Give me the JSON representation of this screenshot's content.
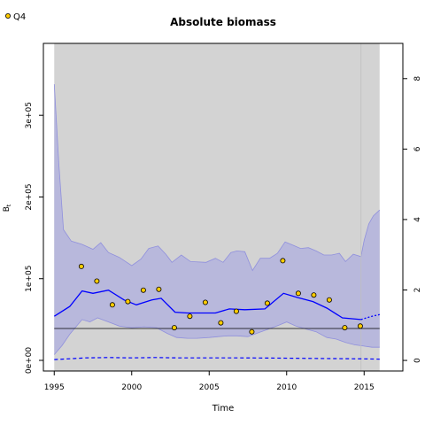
{
  "chart_data": {
    "type": "line",
    "title": "Absolute biomass",
    "xlabel": "Time",
    "ylabel": "B_t",
    "ylabel_main": "B",
    "ylabel_sub": "t",
    "xlim": [
      1994.3,
      2017.5
    ],
    "ylim": [
      -13000.0,
      388000.0
    ],
    "y2lim": [
      -0.3,
      9.0
    ],
    "xticks": [
      1995,
      2000,
      2005,
      2010,
      2015
    ],
    "yticks": [
      0,
      100000,
      200000,
      300000
    ],
    "ytick_labels": [
      "0e+00",
      "1e+05",
      "2e+05",
      "3e+05"
    ],
    "y2ticks": [
      0,
      2,
      4,
      6,
      8
    ],
    "y2tick_labels": [
      "0",
      "2",
      "4",
      "6",
      "8"
    ],
    "shaded_period": [
      1995,
      2016
    ],
    "vertical_line_x": 2014.8,
    "legend": {
      "position": "top-left",
      "entries": [
        {
          "label": "Q4",
          "marker": "circle",
          "color": "#ffcc00"
        }
      ]
    },
    "colors": {
      "bg_shade": "#d3d3d3",
      "ci_fill": "#b8b8dc",
      "ci_edge": "#9090dd",
      "line": "#0000ff",
      "ref_line": "#000000",
      "point": "#ffcc00",
      "vline": "#bfbfbf"
    },
    "series": [
      {
        "name": "Q4",
        "kind": "points",
        "x": [
          1996.75,
          1997.75,
          1998.75,
          1999.75,
          2000.75,
          2001.75,
          2002.75,
          2003.75,
          2004.75,
          2005.75,
          2006.75,
          2007.75,
          2008.75,
          2009.75,
          2010.75,
          2011.75,
          2012.75,
          2013.75,
          2014.75
        ],
        "values": [
          115000,
          97000,
          68000,
          72000,
          86000,
          87000,
          40000,
          54000,
          71000,
          46000,
          60000,
          35000,
          70000,
          122000,
          82000,
          80000,
          74000,
          40000,
          42000
        ]
      },
      {
        "name": "",
        "kind": "median",
        "x": [
          1995.0,
          1996.0,
          1996.8,
          1997.5,
          1998.5,
          1999.5,
          2000.3,
          2001.3,
          2001.9,
          2002.8,
          2003.6,
          2004.5,
          2005.4,
          2006.3,
          2007.3,
          2008.6,
          2009.8,
          2010.7,
          2011.7,
          2012.6,
          2013.6,
          2014.8
        ],
        "values": [
          54000,
          66000,
          85000,
          82000,
          86000,
          74000,
          68000,
          74000,
          76000,
          59000,
          58000,
          58000,
          58000,
          63000,
          62000,
          63000,
          82000,
          77000,
          72000,
          64000,
          52000,
          50000
        ]
      },
      {
        "name": "",
        "kind": "prediction",
        "x": [
          2014.8,
          2015.5,
          2016.0
        ],
        "values": [
          50000,
          54000,
          56000
        ]
      },
      {
        "name": "",
        "kind": "ci_upper",
        "x": [
          1995.0,
          1995.3,
          1995.6,
          1996.1,
          1996.8,
          1997.5,
          1998.0,
          1998.5,
          1999.2,
          2000.0,
          2000.6,
          2001.1,
          2001.7,
          2002.2,
          2002.6,
          2003.2,
          2003.8,
          2004.8,
          2005.4,
          2005.9,
          2006.4,
          2006.8,
          2007.3,
          2007.8,
          2008.3,
          2008.9,
          2009.4,
          2009.9,
          2010.4,
          2010.9,
          2011.4,
          2011.9,
          2012.4,
          2012.9,
          2013.4,
          2013.8,
          2014.3,
          2014.8,
          2015.0,
          2015.3,
          2015.6,
          2016.0
        ],
        "values": [
          338000,
          240000,
          160000,
          146000,
          142000,
          136000,
          144000,
          132000,
          126000,
          116000,
          124000,
          137000,
          140000,
          130000,
          120000,
          129000,
          121000,
          120000,
          125000,
          120000,
          132000,
          134000,
          133000,
          110000,
          125000,
          125000,
          131000,
          145000,
          141000,
          137000,
          138000,
          134000,
          129000,
          129000,
          131000,
          121000,
          130000,
          127000,
          147000,
          167000,
          177000,
          184000
        ]
      },
      {
        "name": "",
        "kind": "ci_lower",
        "x": [
          1995.0,
          1995.5,
          1996.0,
          1996.8,
          1997.3,
          1997.8,
          1998.5,
          1999.2,
          2000.0,
          2000.8,
          2001.6,
          2002.3,
          2002.9,
          2003.6,
          2004.2,
          2005.0,
          2005.6,
          2006.2,
          2006.8,
          2007.5,
          2008.2,
          2008.8,
          2009.5,
          2010.0,
          2010.6,
          2011.3,
          2011.9,
          2012.6,
          2013.2,
          2013.8,
          2014.4,
          2014.8,
          2015.5,
          2016.0
        ],
        "values": [
          7000,
          18000,
          32000,
          50000,
          47000,
          52000,
          47000,
          42000,
          40000,
          41000,
          40000,
          33000,
          28000,
          27000,
          27000,
          28000,
          29000,
          30000,
          30000,
          29000,
          34000,
          38000,
          43000,
          47000,
          42000,
          38000,
          35000,
          28000,
          26000,
          22000,
          19000,
          18000,
          16000,
          16000
        ]
      },
      {
        "name": "",
        "kind": "reference",
        "x": [
          1995.0,
          2016.0
        ],
        "values": [
          39000,
          39000
        ]
      },
      {
        "name": "",
        "kind": "lower_dashed",
        "x": [
          1995.0,
          1996.0,
          1997.0,
          1998.5,
          2000.0,
          2001.5,
          2003.0,
          2005.0,
          2007.0,
          2009.0,
          2011.0,
          2013.0,
          2015.0,
          2016.0
        ],
        "values": [
          1000,
          2000,
          3000,
          3500,
          3000,
          3500,
          3000,
          3000,
          3000,
          2800,
          2500,
          2200,
          1800,
          1500
        ]
      }
    ]
  }
}
